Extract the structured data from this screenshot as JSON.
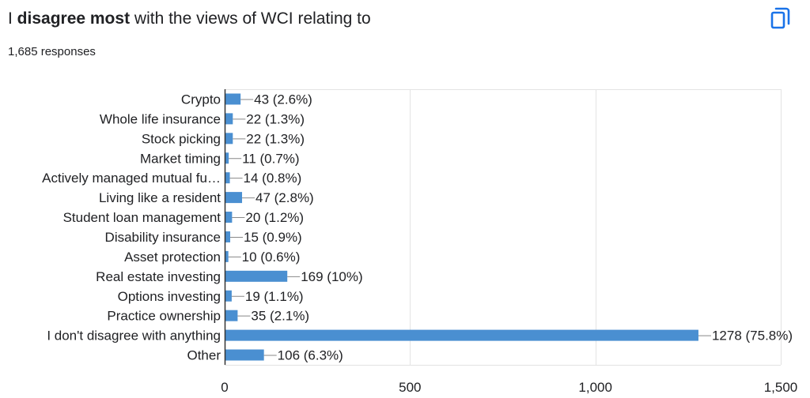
{
  "header": {
    "title_prefix": "I ",
    "title_bold": "disagree most",
    "title_suffix": " with the views of WCI relating to",
    "responses": "1,685 responses",
    "copy_icon": "copy-icon"
  },
  "colors": {
    "bar": "#4a8fd1",
    "gridline": "#e3e3e3",
    "axis": "#333333",
    "text": "#202124"
  },
  "chart_data": {
    "type": "bar",
    "orientation": "horizontal",
    "categories": [
      "Crypto",
      "Whole life insurance",
      "Stock picking",
      "Market timing",
      "Actively managed mutual fu…",
      "Living like a resident",
      "Student loan management",
      "Disability insurance",
      "Asset protection",
      "Real estate investing",
      "Options investing",
      "Practice ownership",
      "I don't disagree with anything",
      "Other"
    ],
    "values": [
      43,
      22,
      22,
      11,
      14,
      47,
      20,
      15,
      10,
      169,
      19,
      35,
      1278,
      106
    ],
    "data_labels": [
      "43 (2.6%)",
      "22 (1.3%)",
      "22 (1.3%)",
      "11 (0.7%)",
      "14 (0.8%)",
      "47 (2.8%)",
      "20 (1.2%)",
      "15 (0.9%)",
      "10 (0.6%)",
      "169 (10%)",
      "19 (1.1%)",
      "35 (2.1%)",
      "1278 (75.8%)",
      "106 (6.3%)"
    ],
    "xlim": [
      0,
      1500
    ],
    "x_ticks": [
      0,
      500,
      1000,
      1500
    ],
    "x_tick_labels": [
      "0",
      "500",
      "1,000",
      "1,500"
    ],
    "grid": true
  }
}
